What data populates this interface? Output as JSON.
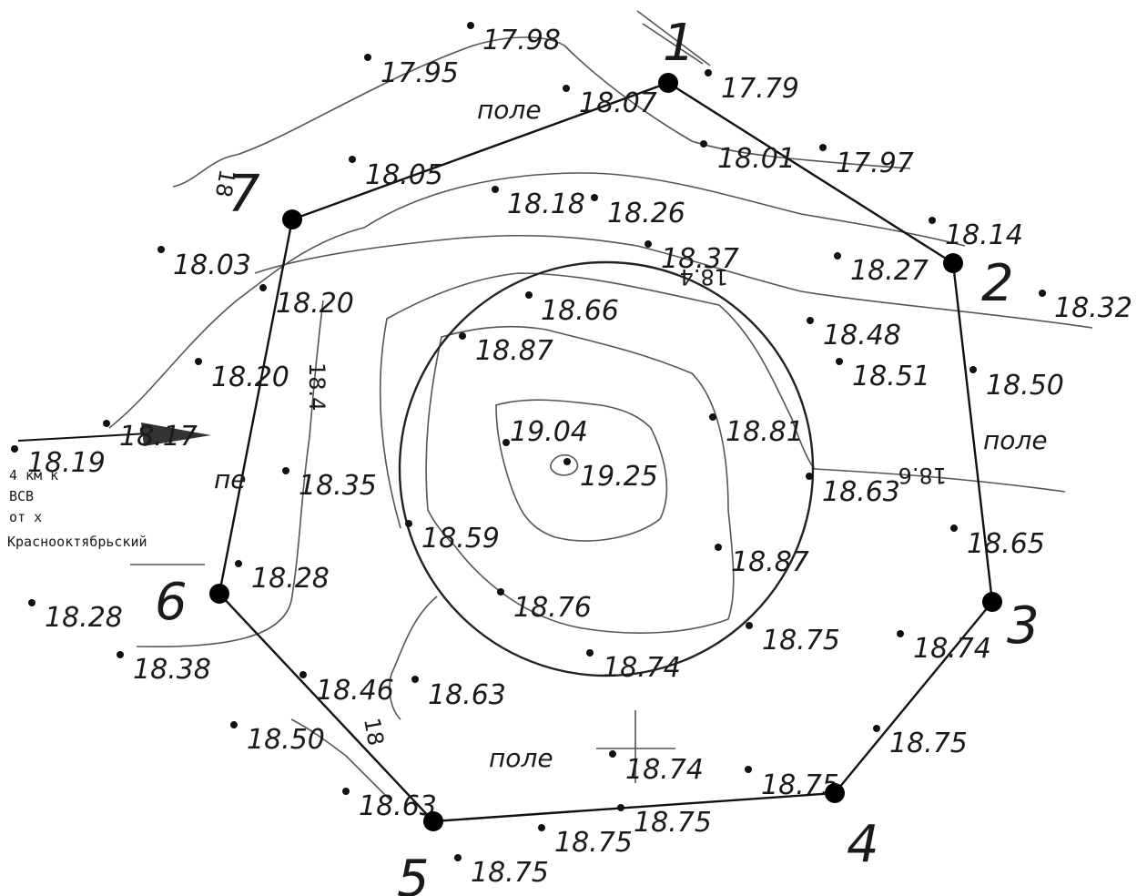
{
  "map": {
    "field_label": "поле",
    "field_label_partial": "пе",
    "contour_labels": [
      "18",
      "18.4",
      "18.4",
      "18.6",
      "18"
    ],
    "location_note": [
      "4  км  к",
      "ВСВ",
      "от  х",
      "Краснооктябрьский"
    ],
    "vertex_labels": [
      "1",
      "2",
      "3",
      "4",
      "5",
      "6",
      "7"
    ],
    "elevations": [
      "17.98",
      "17.95",
      "18.07",
      "17.79",
      "18.01",
      "17.97",
      "18.05",
      "18.18",
      "18.26",
      "18.14",
      "18.27",
      "18.32",
      "18.37",
      "18.03",
      "18.20",
      "18.66",
      "18.48",
      "18.87",
      "18.51",
      "18.50",
      "18.20",
      "18.81",
      "19.04",
      "18.17",
      "18.19",
      "19.25",
      "18.35",
      "18.63",
      "18.65",
      "18.59",
      "18.28",
      "18.87",
      "18.28",
      "18.76",
      "18.75",
      "18.74",
      "18.38",
      "18.74",
      "18.46",
      "18.63",
      "18.75",
      "18.50",
      "18.74",
      "18.75",
      "18.63",
      "18.75",
      "18.75",
      "18.75"
    ]
  }
}
